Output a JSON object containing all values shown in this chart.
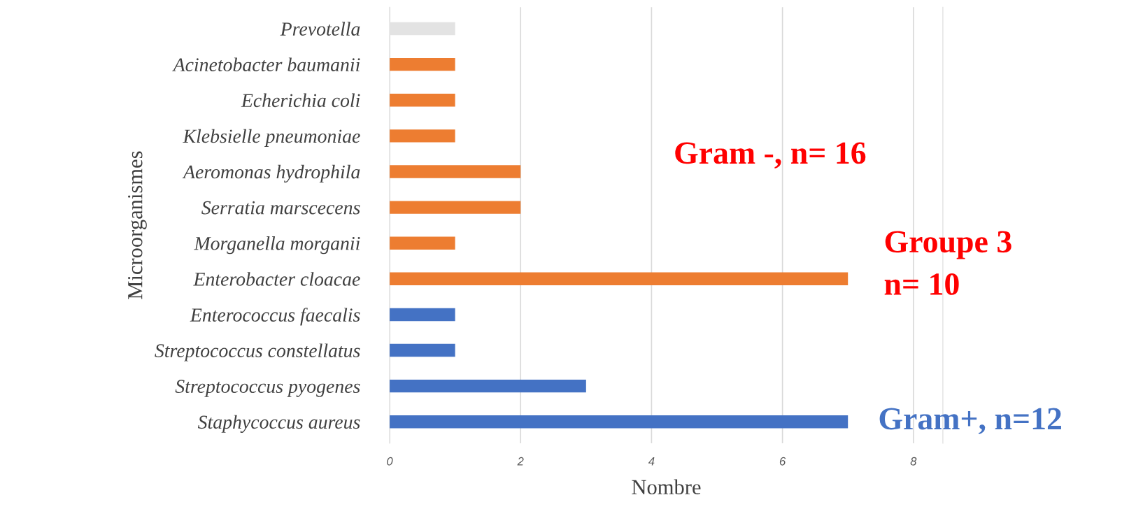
{
  "chart_data": {
    "type": "bar",
    "orientation": "horizontal",
    "categories": [
      "Prevotella",
      "Acinetobacter baumanii",
      "Echerichia coli",
      "Klebsielle pneumoniae",
      "Aeromonas hydrophila",
      "Serratia marscecens",
      "Morganella morganii",
      "Enterobacter cloacae",
      "Enterococcus faecalis",
      "Streptococcus constellatus",
      "Streptococcus pyogenes",
      "Staphycoccus aureus"
    ],
    "values": [
      1,
      1,
      1,
      1,
      2,
      2,
      1,
      7,
      1,
      1,
      3,
      7
    ],
    "colors": [
      "#e3e3e3",
      "#ed7d31",
      "#ed7d31",
      "#ed7d31",
      "#ed7d31",
      "#ed7d31",
      "#ed7d31",
      "#ed7d31",
      "#4472c4",
      "#4472c4",
      "#4472c4",
      "#4472c4"
    ],
    "xlim": [
      0,
      8.45
    ],
    "xticks": [
      0,
      2,
      4,
      6,
      8
    ],
    "grid": "x",
    "xlabel": "Nombre",
    "ylabel": "Microorganismes",
    "annotations": [
      "Gram -, n= 16",
      "Groupe 3\nn= 10",
      "Gram+, n=12"
    ]
  }
}
